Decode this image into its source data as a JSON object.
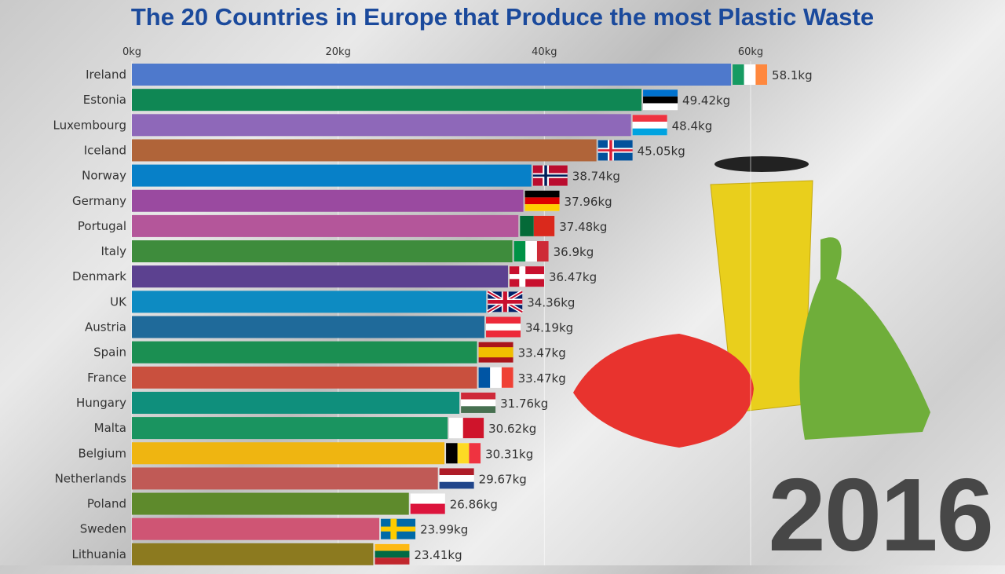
{
  "chart_data": {
    "type": "bar",
    "orientation": "horizontal",
    "title": "The 20 Countries in Europe that Produce the most Plastic Waste",
    "year": "2016",
    "unit": "kg",
    "xlim": [
      0,
      62
    ],
    "x_ticks": [
      0,
      20,
      40,
      60
    ],
    "x_tick_labels": [
      "0kg",
      "20kg",
      "40kg",
      "60kg"
    ],
    "grid": true,
    "categories": [
      "Ireland",
      "Estonia",
      "Luxembourg",
      "Iceland",
      "Norway",
      "Germany",
      "Portugal",
      "Italy",
      "Denmark",
      "UK",
      "Austria",
      "Spain",
      "France",
      "Hungary",
      "Malta",
      "Belgium",
      "Netherlands",
      "Poland",
      "Sweden",
      "Lithuania"
    ],
    "values": [
      58.1,
      49.42,
      48.4,
      45.05,
      38.74,
      37.96,
      37.48,
      36.9,
      36.47,
      34.36,
      34.19,
      33.47,
      33.47,
      31.76,
      30.62,
      30.31,
      29.67,
      26.86,
      23.99,
      23.41
    ],
    "value_labels": [
      "58.1kg",
      "49.42kg",
      "48.4kg",
      "45.05kg",
      "38.74kg",
      "37.96kg",
      "37.48kg",
      "36.9kg",
      "36.47kg",
      "34.36kg",
      "34.19kg",
      "33.47kg",
      "33.47kg",
      "31.76kg",
      "30.62kg",
      "30.31kg",
      "29.67kg",
      "26.86kg",
      "23.99kg",
      "23.41kg"
    ],
    "colors": [
      "#4e79cc",
      "#0f8754",
      "#8e68b9",
      "#b06439",
      "#0780c8",
      "#9a4aa0",
      "#b4569a",
      "#3e8c3c",
      "#5c4190",
      "#0d8bc2",
      "#1f6a9a",
      "#1b8f52",
      "#c9503e",
      "#0f8f7c",
      "#1a9460",
      "#efb511",
      "#c05a56",
      "#5e8a2c",
      "#cf5574",
      "#8c7a1f"
    ],
    "flags": [
      {
        "name": "ireland-flag",
        "dir": "v",
        "colors": [
          "#169b62",
          "#ffffff",
          "#ff883e"
        ]
      },
      {
        "name": "estonia-flag",
        "dir": "h",
        "colors": [
          "#0072ce",
          "#000000",
          "#ffffff"
        ]
      },
      {
        "name": "luxembourg-flag",
        "dir": "h",
        "colors": [
          "#ef3340",
          "#ffffff",
          "#00a3e0"
        ]
      },
      {
        "name": "iceland-flag",
        "dir": "cross",
        "colors": [
          "#02529c",
          "#ffffff",
          "#dc1e35"
        ]
      },
      {
        "name": "norway-flag",
        "dir": "cross",
        "colors": [
          "#ba0c2f",
          "#ffffff",
          "#00205b"
        ]
      },
      {
        "name": "germany-flag",
        "dir": "h",
        "colors": [
          "#000000",
          "#dd0000",
          "#ffce00"
        ]
      },
      {
        "name": "portugal-flag",
        "dir": "v2",
        "colors": [
          "#046a38",
          "#da291c"
        ]
      },
      {
        "name": "italy-flag",
        "dir": "v",
        "colors": [
          "#009246",
          "#ffffff",
          "#ce2b37"
        ]
      },
      {
        "name": "denmark-flag",
        "dir": "cross",
        "colors": [
          "#c8102e",
          "#ffffff",
          "#ffffff"
        ]
      },
      {
        "name": "uk-flag",
        "dir": "uk",
        "colors": [
          "#012169",
          "#ffffff",
          "#c8102e"
        ]
      },
      {
        "name": "austria-flag",
        "dir": "h",
        "colors": [
          "#ed2939",
          "#ffffff",
          "#ed2939"
        ]
      },
      {
        "name": "spain-flag",
        "dir": "h3",
        "colors": [
          "#aa151b",
          "#f1bf00",
          "#aa151b"
        ]
      },
      {
        "name": "france-flag",
        "dir": "v",
        "colors": [
          "#0055a4",
          "#ffffff",
          "#ef4135"
        ]
      },
      {
        "name": "hungary-flag",
        "dir": "h",
        "colors": [
          "#ce2939",
          "#ffffff",
          "#477050"
        ]
      },
      {
        "name": "malta-flag",
        "dir": "v2",
        "colors": [
          "#ffffff",
          "#cf142b"
        ]
      },
      {
        "name": "belgium-flag",
        "dir": "v",
        "colors": [
          "#000000",
          "#fdda24",
          "#ef3340"
        ]
      },
      {
        "name": "netherlands-flag",
        "dir": "h",
        "colors": [
          "#ae1c28",
          "#ffffff",
          "#21468b"
        ]
      },
      {
        "name": "poland-flag",
        "dir": "h2",
        "colors": [
          "#ffffff",
          "#dc143c"
        ]
      },
      {
        "name": "sweden-flag",
        "dir": "cross",
        "colors": [
          "#006aa7",
          "#fecc00",
          "#fecc00"
        ]
      },
      {
        "name": "lithuania-flag",
        "dir": "h",
        "colors": [
          "#fdb913",
          "#006a44",
          "#c1272d"
        ]
      }
    ]
  }
}
